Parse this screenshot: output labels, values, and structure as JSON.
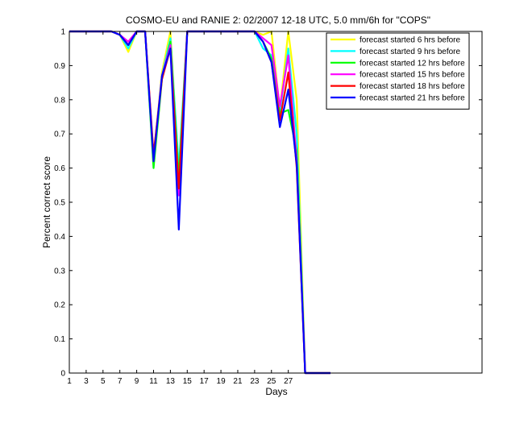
{
  "chart_data": {
    "type": "line",
    "title": "COSMO-EU and RANIE 2: 02/2007 12-18 UTC, 5.0 mm/6h for \"COPS\"",
    "xlabel": "Days",
    "ylabel": "Percent correct score",
    "xlim": [
      1,
      50
    ],
    "ylim": [
      0,
      1
    ],
    "xticks": [
      1,
      3,
      5,
      7,
      9,
      11,
      13,
      15,
      17,
      19,
      21,
      23,
      25,
      27
    ],
    "yticks": [
      0,
      0.1,
      0.2,
      0.3,
      0.4,
      0.5,
      0.6,
      0.7,
      0.8,
      0.9,
      1
    ],
    "x": [
      1,
      2,
      3,
      4,
      5,
      6,
      7,
      8,
      9,
      10,
      11,
      12,
      13,
      14,
      15,
      16,
      17,
      18,
      19,
      20,
      21,
      22,
      23,
      24,
      25,
      26,
      27,
      28,
      29,
      30,
      31,
      32
    ],
    "grid": false,
    "legend_position": "top-right",
    "series": [
      {
        "name": "forecast started 6 hrs before",
        "color": "#ffff00",
        "values": [
          1,
          1,
          1,
          1,
          1,
          1,
          0.99,
          0.94,
          1,
          1,
          0.63,
          0.88,
          1,
          0.58,
          1,
          1,
          1,
          1,
          1,
          1,
          1,
          1,
          1,
          0.99,
          1,
          0.77,
          1,
          0.8,
          0,
          0,
          0,
          0
        ]
      },
      {
        "name": "forecast started 9 hrs before",
        "color": "#00ffff",
        "values": [
          1,
          1,
          1,
          1,
          1,
          1,
          0.99,
          0.95,
          1,
          1,
          0.61,
          0.87,
          0.98,
          0.6,
          1,
          1,
          1,
          1,
          1,
          1,
          1,
          1,
          1,
          0.95,
          0.93,
          0.76,
          0.95,
          0.7,
          0,
          0,
          0,
          0
        ]
      },
      {
        "name": "forecast started 12 hrs before",
        "color": "#00ff00",
        "values": [
          1,
          1,
          1,
          1,
          1,
          1,
          0.99,
          0.96,
          1,
          1,
          0.6,
          0.86,
          0.97,
          0.57,
          1,
          1,
          1,
          1,
          1,
          1,
          1,
          1,
          1,
          0.97,
          0.92,
          0.76,
          0.77,
          0.65,
          0,
          0,
          0,
          0
        ]
      },
      {
        "name": "forecast started 15 hrs before",
        "color": "#ff00ff",
        "values": [
          1,
          1,
          1,
          1,
          1,
          1,
          0.99,
          0.97,
          1,
          1,
          0.63,
          0.87,
          0.96,
          0.52,
          1,
          1,
          1,
          1,
          1,
          1,
          1,
          1,
          1,
          0.98,
          0.96,
          0.78,
          0.93,
          0.62,
          0,
          0,
          0,
          0
        ]
      },
      {
        "name": "forecast started 18 hrs before",
        "color": "#ff0000",
        "values": [
          1,
          1,
          1,
          1,
          1,
          1,
          0.99,
          0.96,
          1,
          1,
          0.64,
          0.86,
          0.95,
          0.54,
          1,
          1,
          1,
          1,
          1,
          1,
          1,
          1,
          1,
          0.97,
          0.91,
          0.74,
          0.88,
          0.6,
          0,
          0,
          0,
          0
        ]
      },
      {
        "name": "forecast started 21 hrs before",
        "color": "#0000ff",
        "values": [
          1,
          1,
          1,
          1,
          1,
          1,
          0.99,
          0.96,
          1,
          1,
          0.62,
          0.87,
          0.95,
          0.42,
          1,
          1,
          1,
          1,
          1,
          1,
          1,
          1,
          1,
          0.97,
          0.91,
          0.72,
          0.83,
          0.61,
          0,
          0,
          0,
          0
        ]
      }
    ]
  }
}
